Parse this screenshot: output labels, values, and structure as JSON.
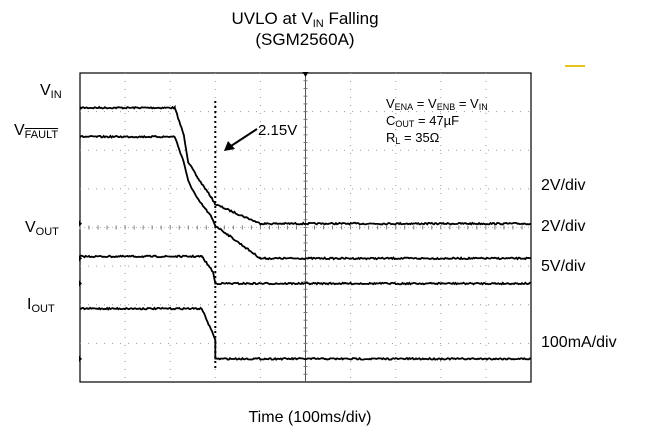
{
  "chart_data": {
    "type": "line",
    "title_line1_prefix": "UVLO at V",
    "title_line1_sub": "IN",
    "title_line1_suffix": " Falling",
    "title_line2": "(SGM2560A)",
    "xlabel": "Time (100ms/div)",
    "divisions": {
      "x": 10,
      "y": 8
    },
    "grid": true,
    "trigger_cursor_div": 3.0,
    "annotation": "2.15V",
    "conditions": {
      "line1": {
        "a": "V",
        "a_sub": "ENA",
        "b": " = V",
        "b_sub": "ENB",
        "c": " = V",
        "c_sub": "IN"
      },
      "line2": {
        "a": "C",
        "a_sub": "OUT",
        "b": " = 47µF"
      },
      "line3": {
        "a": "R",
        "a_sub": "L",
        "b": " = 35Ω"
      }
    },
    "x_unit": "div",
    "series": [
      {
        "name": "V",
        "name_sub": "IN",
        "scale": "2V/div",
        "x": [
          0,
          2.1,
          2.3,
          2.4,
          2.6,
          2.9,
          3.0,
          4.0,
          10
        ],
        "y": [
          7.1,
          7.1,
          6.4,
          5.7,
          5.3,
          4.8,
          4.6,
          4.1,
          4.1
        ]
      },
      {
        "name": "V",
        "name_sub": "FAULT",
        "overline": true,
        "scale": "2V/div",
        "x": [
          0,
          2.1,
          2.3,
          2.4,
          2.6,
          2.9,
          3.0,
          4.0,
          10
        ],
        "y": [
          6.35,
          6.35,
          5.7,
          5.2,
          4.75,
          4.3,
          4.05,
          3.2,
          3.2
        ]
      },
      {
        "name": "V",
        "name_sub": "OUT",
        "scale": "5V/div",
        "x": [
          0,
          2.7,
          2.95,
          3.0,
          10
        ],
        "y": [
          3.25,
          3.25,
          2.85,
          2.55,
          2.55
        ]
      },
      {
        "name": "I",
        "name_sub": "OUT",
        "scale": "100mA/div",
        "x": [
          0,
          2.7,
          3.0,
          3.0,
          10
        ],
        "y": [
          1.9,
          1.9,
          1.1,
          0.6,
          0.6
        ]
      }
    ]
  }
}
